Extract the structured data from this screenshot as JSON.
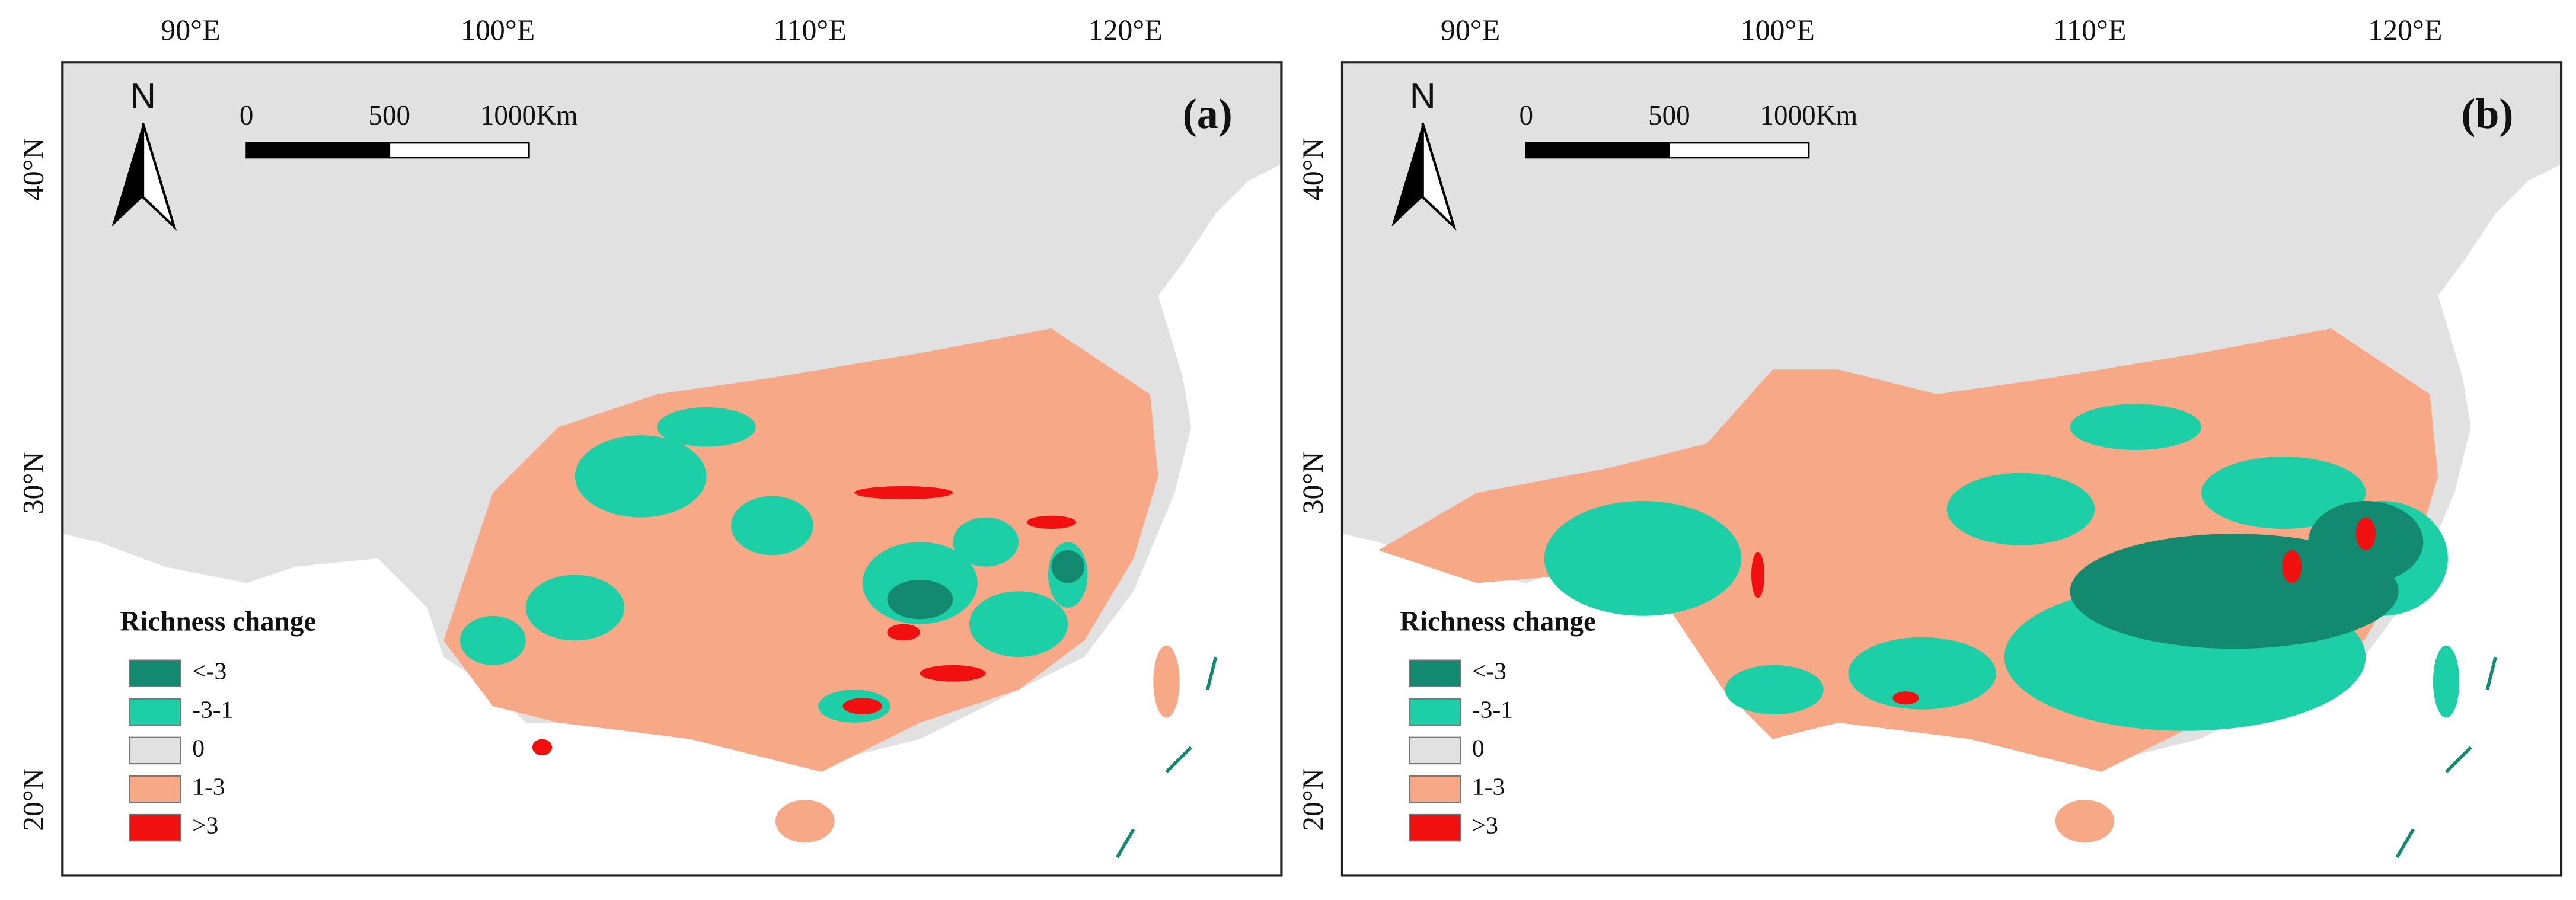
{
  "panels": [
    {
      "label": "(a)",
      "x_ticks": [
        "90°E",
        "100°E",
        "110°E",
        "120°E"
      ],
      "y_ticks": [
        "40°N",
        "30°N",
        "20°N"
      ],
      "north": "N",
      "scale_bar": [
        "0",
        "500",
        "1000Km"
      ],
      "legend": {
        "title": "Richness change",
        "items": [
          {
            "label": "<-3",
            "color": "#138a6f"
          },
          {
            "label": "-3-1",
            "color": "#1ccfa6"
          },
          {
            "label": "0",
            "color": "#e1e1e1"
          },
          {
            "label": "1-3",
            "color": "#f7a987"
          },
          {
            "label": ">3",
            "color": "#f01010"
          }
        ]
      }
    },
    {
      "label": "(b)",
      "x_ticks": [
        "90°E",
        "100°E",
        "110°E",
        "120°E"
      ],
      "y_ticks": [
        "40°N",
        "30°N",
        "20°N"
      ],
      "north": "N",
      "scale_bar": [
        "0",
        "500",
        "1000Km"
      ],
      "legend": {
        "title": "Richness change",
        "items": [
          {
            "label": "<-3",
            "color": "#138a6f"
          },
          {
            "label": "-3-1",
            "color": "#1ccfa6"
          },
          {
            "label": "0",
            "color": "#e1e1e1"
          },
          {
            "label": "1-3",
            "color": "#f7a987"
          },
          {
            "label": ">3",
            "color": "#f01010"
          }
        ]
      }
    }
  ]
}
